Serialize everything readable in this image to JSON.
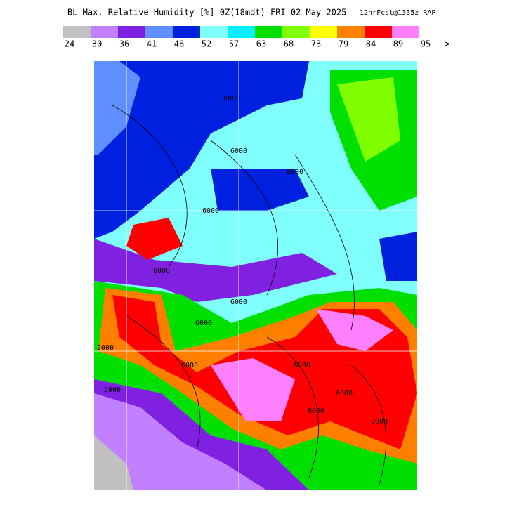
{
  "header": {
    "title": "BL Max. Relative Humidity [%] 0Z(18mdt) FRI 02 May 2025",
    "subtitle": "12hrFcst@1335z RAP"
  },
  "legend": {
    "colors": [
      "#c0c0c0",
      "#c080ff",
      "#8020e0",
      "#6090ff",
      "#0020e0",
      "#80ffff",
      "#00f0ff",
      "#00e000",
      "#80ff00",
      "#ffff00",
      "#ff8000",
      "#ff0000",
      "#ff80ff"
    ],
    "labels": [
      24,
      30,
      36,
      41,
      46,
      52,
      57,
      63,
      68,
      73,
      79,
      84,
      89,
      95,
      ">"
    ]
  },
  "map": {
    "contour_labels": [
      "6000",
      "6000",
      "8000",
      "6000",
      "6000",
      "6000",
      "6000",
      "6000",
      "6000",
      "6000",
      "2000",
      "2000",
      "6000",
      "8000"
    ]
  }
}
